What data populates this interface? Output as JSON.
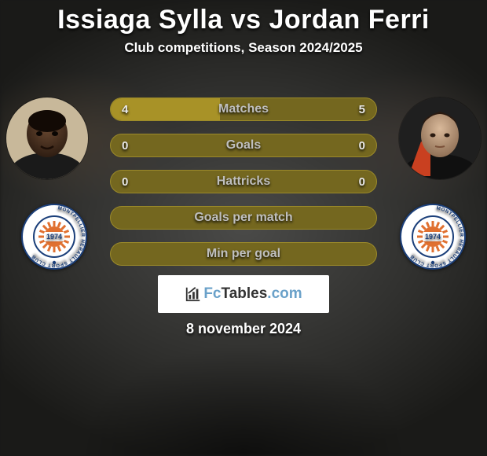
{
  "colors": {
    "pill_bg": "#74671f",
    "pill_border": "#9b8a2a",
    "pill_fill": "#a89227",
    "label_text": "#bfbfbf",
    "value_text": "#e8e8e8",
    "title_text": "#ffffff",
    "watermark_bg": "#ffffff",
    "watermark_accent": "#6aa1c9"
  },
  "title": "Issiaga Sylla vs Jordan Ferri",
  "subtitle": "Club competitions, Season 2024/2025",
  "date": "8 november 2024",
  "watermark": {
    "fc": "Fc",
    "tables": "Tables",
    "com": ".com"
  },
  "players": {
    "left": {
      "name": "Issiaga Sylla"
    },
    "right": {
      "name": "Jordan Ferri"
    }
  },
  "club": {
    "name": "Montpellier Herault Sport Club",
    "ring_text": "MONTPELLIER HERAULT SPORT CLUB",
    "year": "1974"
  },
  "rows": [
    {
      "label": "Matches",
      "left": "4",
      "right": "5",
      "fillL_pct": 41,
      "fillR_pct": 0
    },
    {
      "label": "Goals",
      "left": "0",
      "right": "0",
      "fillL_pct": 0,
      "fillR_pct": 0
    },
    {
      "label": "Hattricks",
      "left": "0",
      "right": "0",
      "fillL_pct": 0,
      "fillR_pct": 0
    },
    {
      "label": "Goals per match",
      "left": "",
      "right": "",
      "fillL_pct": 0,
      "fillR_pct": 0
    },
    {
      "label": "Min per goal",
      "left": "",
      "right": "",
      "fillL_pct": 0,
      "fillR_pct": 0
    }
  ]
}
